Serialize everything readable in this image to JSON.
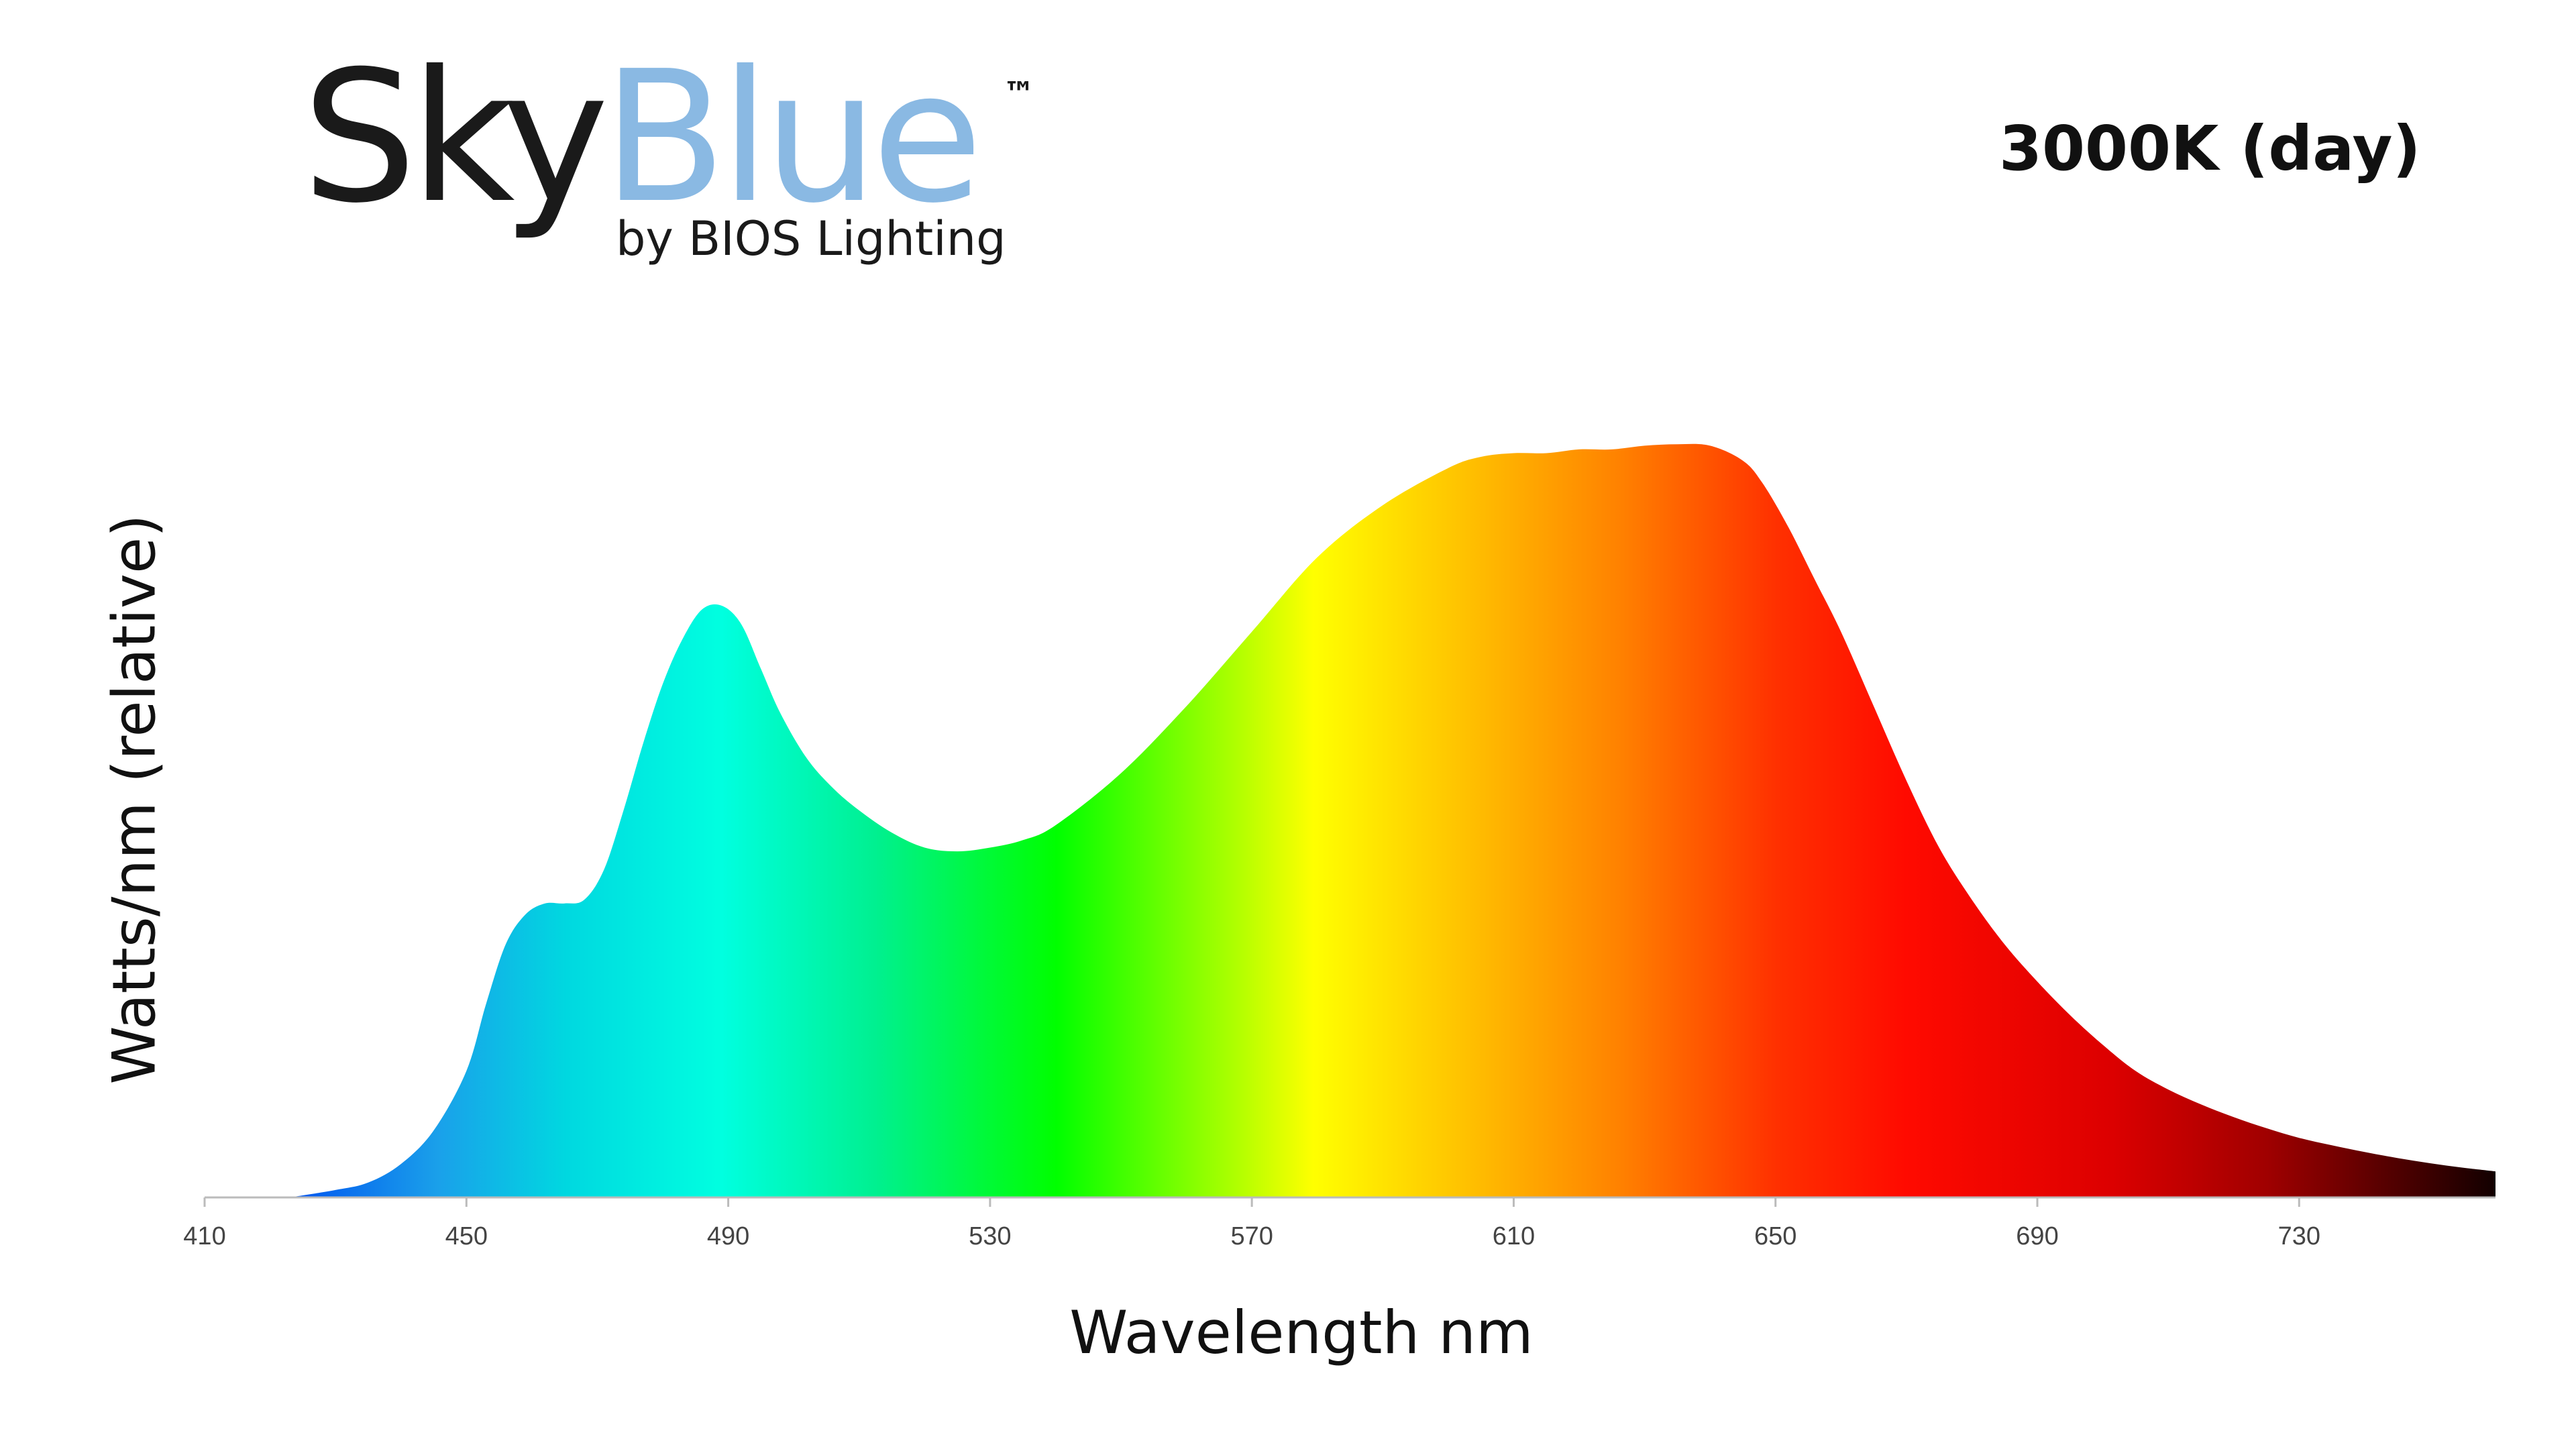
{
  "logo": {
    "sky": "Sky",
    "blue": "Blue",
    "tm": "™",
    "byline": "by BIOS Lighting"
  },
  "colors": {
    "brand_blue": "#8ab9e3",
    "text": "#111111"
  },
  "chart_data": {
    "type": "area",
    "title": "",
    "subtitle": "3000K (day)",
    "xlabel": "Wavelength nm",
    "ylabel": "Watts/nm (relative)",
    "xlim": [
      410,
      760
    ],
    "ylim": [
      0,
      1.05
    ],
    "x_ticks": [
      410,
      450,
      490,
      530,
      570,
      610,
      650,
      690,
      730
    ],
    "y_ticks": [],
    "grid": false,
    "legend": "none",
    "fill": "visible-spectrum gradient",
    "x": [
      423,
      430,
      435,
      440,
      445,
      450,
      453,
      456,
      459,
      462,
      465,
      468,
      471,
      474,
      477,
      480,
      483,
      486,
      489,
      492,
      495,
      498,
      502,
      506,
      510,
      515,
      520,
      525,
      530,
      535,
      540,
      550,
      560,
      570,
      580,
      590,
      600,
      605,
      610,
      615,
      620,
      625,
      630,
      635,
      640,
      645,
      648,
      652,
      656,
      660,
      665,
      670,
      675,
      680,
      685,
      690,
      695,
      700,
      705,
      710,
      715,
      720,
      725,
      730,
      735,
      740,
      745,
      750,
      755,
      760
    ],
    "y": [
      0.0,
      0.01,
      0.02,
      0.045,
      0.09,
      0.17,
      0.26,
      0.34,
      0.38,
      0.395,
      0.395,
      0.4,
      0.44,
      0.52,
      0.61,
      0.69,
      0.75,
      0.79,
      0.795,
      0.77,
      0.71,
      0.65,
      0.59,
      0.55,
      0.52,
      0.49,
      0.47,
      0.465,
      0.47,
      0.48,
      0.5,
      0.57,
      0.66,
      0.76,
      0.86,
      0.93,
      0.98,
      0.995,
      1.0,
      1.0,
      1.005,
      1.005,
      1.01,
      1.012,
      1.01,
      0.99,
      0.96,
      0.9,
      0.83,
      0.76,
      0.66,
      0.56,
      0.47,
      0.4,
      0.34,
      0.29,
      0.245,
      0.205,
      0.17,
      0.145,
      0.125,
      0.108,
      0.093,
      0.08,
      0.07,
      0.061,
      0.053,
      0.046,
      0.04,
      0.035
    ]
  }
}
